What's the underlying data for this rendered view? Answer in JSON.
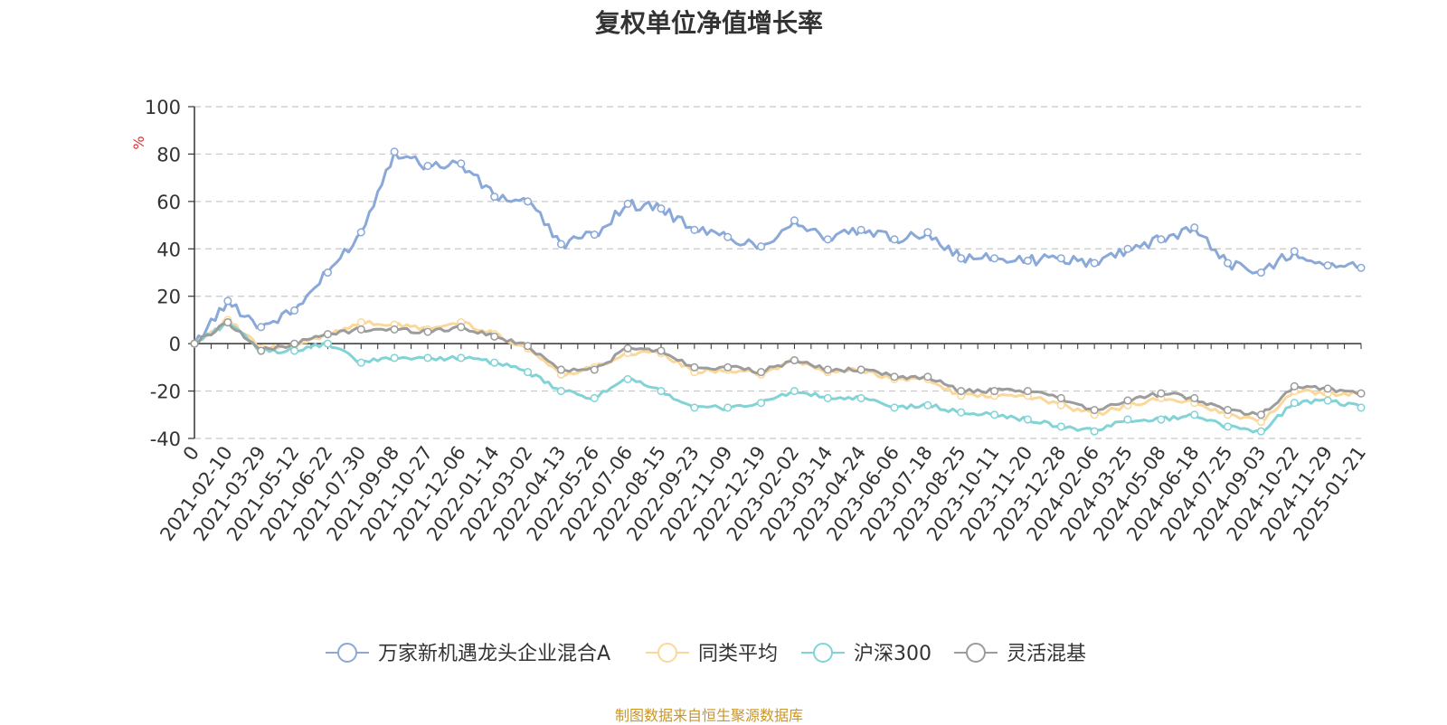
{
  "chart_data": {
    "type": "line",
    "title": "复权单位净值增长率",
    "ylabel": "%",
    "ylim": [
      -40,
      100
    ],
    "yticks": [
      -40,
      -20,
      0,
      20,
      40,
      60,
      80,
      100
    ],
    "x_tick_labels": [
      "0",
      "2021-02-10",
      "2021-03-29",
      "2021-05-12",
      "2021-06-22",
      "2021-07-30",
      "2021-09-08",
      "2021-10-27",
      "2021-12-06",
      "2022-01-14",
      "2022-03-02",
      "2022-04-13",
      "2022-05-26",
      "2022-07-06",
      "2022-08-15",
      "2022-09-23",
      "2022-11-09",
      "2022-12-19",
      "2023-02-02",
      "2023-03-14",
      "2023-04-24",
      "2023-06-06",
      "2023-07-18",
      "2023-08-25",
      "2023-10-11",
      "2023-11-20",
      "2023-12-28",
      "2024-02-06",
      "2024-03-25",
      "2024-05-08",
      "2024-06-18",
      "2024-07-25",
      "2024-09-03",
      "2024-10-22",
      "2024-11-29",
      "2025-01-21"
    ],
    "grid": true,
    "legend_position": "bottom",
    "series": [
      {
        "name": "万家新机遇龙头企业混合A",
        "color": "#8aa9d8",
        "values": [
          0,
          18,
          7,
          14,
          30,
          47,
          81,
          75,
          76,
          62,
          60,
          42,
          46,
          59,
          57,
          48,
          45,
          41,
          52,
          44,
          48,
          44,
          47,
          36,
          36,
          35,
          36,
          34,
          40,
          44,
          49,
          34,
          30,
          39,
          33,
          32
        ]
      },
      {
        "name": "同类平均",
        "color": "#fbd89a",
        "values": [
          0,
          10,
          -2,
          -1,
          4,
          9,
          8,
          6,
          9,
          4,
          -2,
          -13,
          -10,
          -4,
          -4,
          -12,
          -11,
          -13,
          -7,
          -12,
          -11,
          -15,
          -15,
          -22,
          -22,
          -22,
          -26,
          -30,
          -26,
          -23,
          -25,
          -30,
          -33,
          -20,
          -21,
          -21
        ]
      },
      {
        "name": "沪深300",
        "color": "#82d3d6",
        "values": [
          0,
          9,
          -3,
          -3,
          0,
          -8,
          -6,
          -6,
          -6,
          -8,
          -12,
          -20,
          -23,
          -15,
          -20,
          -27,
          -27,
          -25,
          -20,
          -23,
          -23,
          -27,
          -26,
          -29,
          -30,
          -32,
          -35,
          -37,
          -32,
          -32,
          -30,
          -35,
          -37,
          -25,
          -24,
          -27
        ]
      },
      {
        "name": "灵活混基",
        "color": "#9c9c9c",
        "values": [
          0,
          9,
          -3,
          0,
          4,
          6,
          6,
          5,
          7,
          3,
          -1,
          -11,
          -11,
          -2,
          -3,
          -10,
          -10,
          -12,
          -7,
          -11,
          -11,
          -14,
          -14,
          -20,
          -20,
          -20,
          -23,
          -28,
          -24,
          -21,
          -23,
          -28,
          -30,
          -18,
          -19,
          -21
        ]
      }
    ]
  },
  "footer": {
    "source": "制图数据来自恒生聚源数据库"
  }
}
